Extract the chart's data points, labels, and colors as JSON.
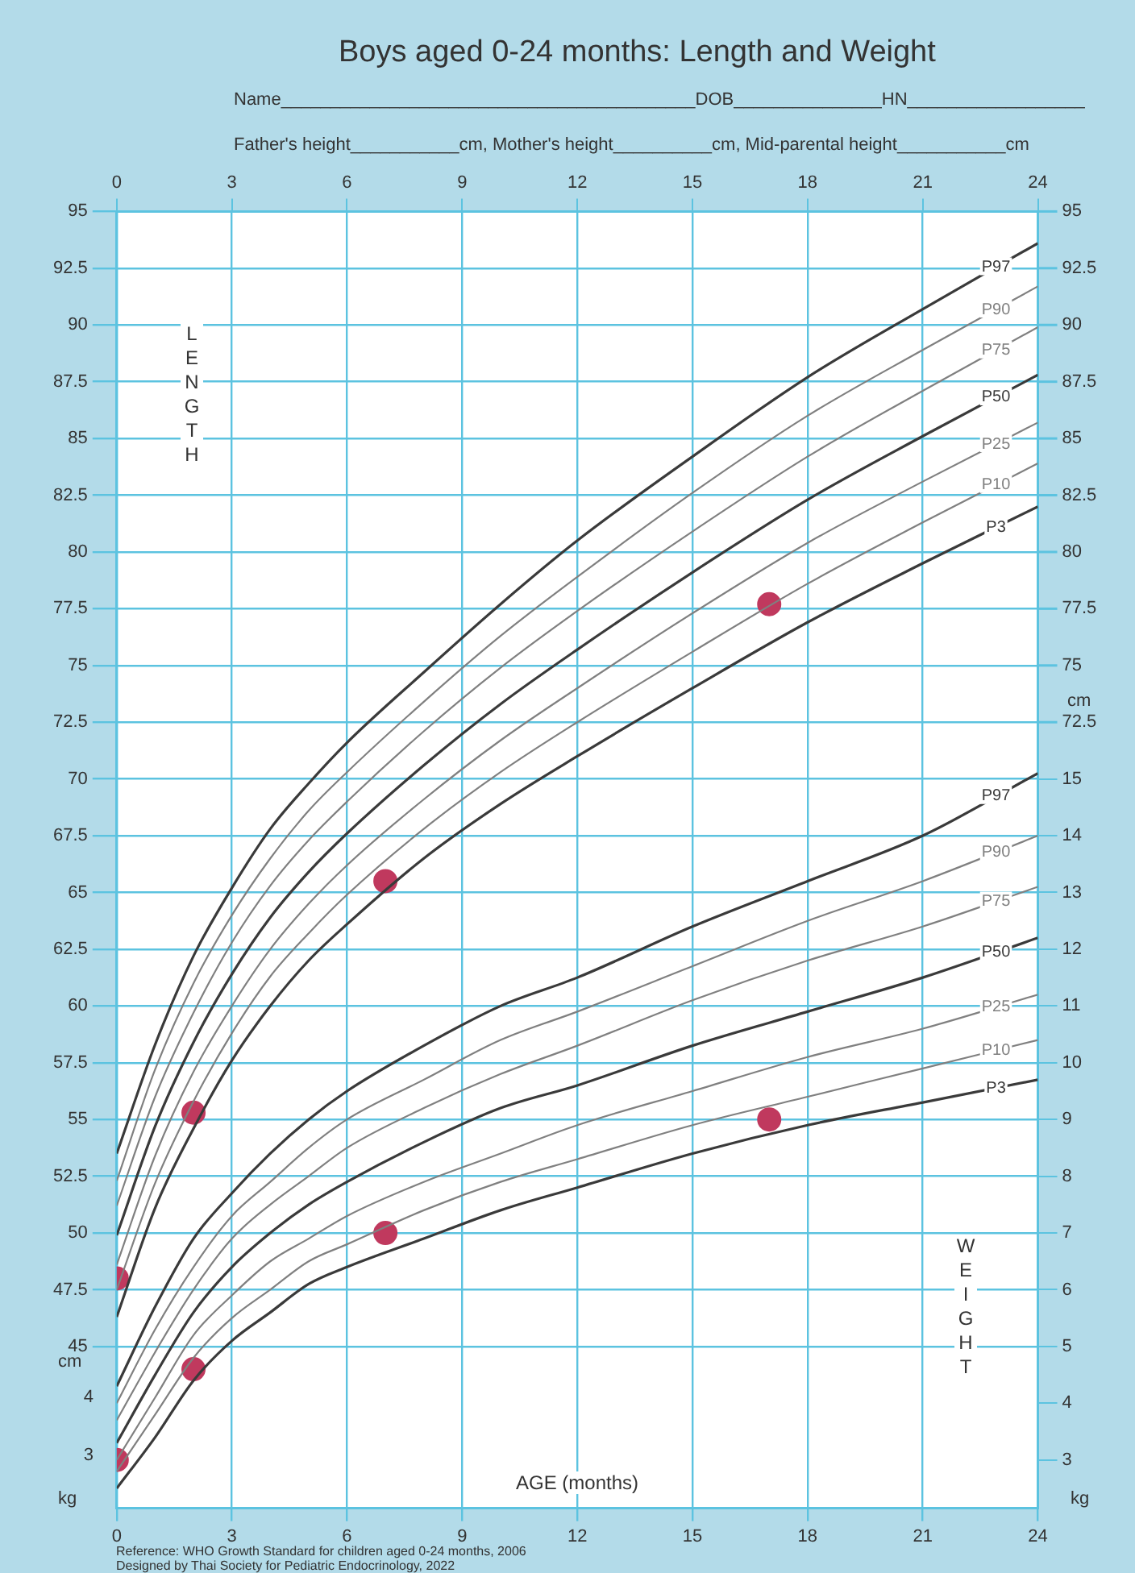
{
  "chart_data": {
    "type": "line",
    "title": "Boys aged 0-24 months: Length and Weight",
    "xlabel": "AGE (months)",
    "annotations": [
      "Name__________________________________________DOB_______________HN__________________",
      "Father's height___________cm, Mother's height__________cm, Mid-parental height___________cm",
      "LENGTH",
      "WEIGHT",
      "cm",
      "kg",
      "cm",
      "kg",
      "4",
      "3",
      "Reference: WHO Growth Standard for children aged 0-24 months, 2006",
      "Designed by Thai Society for Pediatric Endocrinology, 2022"
    ],
    "x": [
      0,
      1,
      2,
      3,
      4,
      5,
      6,
      8,
      10,
      12,
      15,
      18,
      21,
      24
    ],
    "xlim": [
      0,
      24
    ],
    "xticks": [
      0,
      3,
      6,
      9,
      12,
      15,
      18,
      21,
      24
    ],
    "x2lim": [
      0,
      24
    ],
    "x2ticks": [
      0,
      3,
      6,
      9,
      12,
      15,
      18,
      21,
      24
    ],
    "ylim": [
      37.875,
      95
    ],
    "yticks": [
      45,
      47.5,
      50,
      52.5,
      55,
      57.5,
      60,
      62.5,
      65,
      67.5,
      70,
      72.5,
      75,
      77.5,
      80,
      82.5,
      85,
      87.5,
      90,
      92.5,
      95
    ],
    "y2lim": [
      2.15,
      25
    ],
    "y2ticks": [
      3,
      4,
      5,
      6,
      7,
      8,
      9,
      10,
      11,
      12,
      13,
      14,
      15
    ],
    "y3lim": [
      37.875,
      95
    ],
    "y3ticks": [
      72.5,
      75,
      77.5,
      80,
      82.5,
      85,
      87.5,
      90,
      92.5,
      95
    ],
    "grid": true,
    "legend": false,
    "marker": "none",
    "line_style": "solid",
    "series": [
      {
        "name": "P97",
        "color": "#3a3a3a",
        "values": [
          53.5,
          58.3,
          62.2,
          65.2,
          67.8,
          69.8,
          71.6,
          74.7,
          77.7,
          80.5,
          84.2,
          87.7,
          90.7,
          93.6
        ]
      },
      {
        "name": "P90",
        "color": "#808080",
        "values": [
          52.3,
          57.2,
          61.0,
          64.0,
          66.5,
          68.6,
          70.3,
          73.4,
          76.3,
          78.9,
          82.6,
          86.0,
          88.9,
          91.7
        ]
      },
      {
        "name": "P75",
        "color": "#808080",
        "values": [
          51.2,
          56.0,
          59.7,
          62.8,
          65.3,
          67.3,
          69.0,
          72.1,
          74.9,
          77.4,
          80.9,
          84.2,
          87.1,
          89.9
        ]
      },
      {
        "name": "P50",
        "color": "#3a3a3a",
        "values": [
          49.9,
          54.7,
          58.4,
          61.4,
          63.9,
          65.9,
          67.6,
          70.6,
          73.3,
          75.7,
          79.1,
          82.3,
          85.1,
          87.8
        ]
      },
      {
        "name": "P25",
        "color": "#808080",
        "values": [
          48.6,
          53.4,
          57.1,
          60.0,
          62.5,
          64.5,
          66.2,
          69.1,
          71.7,
          74.0,
          77.3,
          80.4,
          83.1,
          85.7
        ]
      },
      {
        "name": "P10",
        "color": "#808080",
        "values": [
          47.5,
          52.2,
          55.8,
          58.8,
          61.3,
          63.2,
          64.9,
          67.8,
          70.3,
          72.5,
          75.6,
          78.6,
          81.3,
          83.9
        ]
      },
      {
        "name": "P3",
        "color": "#3a3a3a",
        "values": [
          46.3,
          51.1,
          54.6,
          57.6,
          60.0,
          62.0,
          63.6,
          66.5,
          68.9,
          71.0,
          74.0,
          76.9,
          79.5,
          82.0
        ]
      },
      {
        "name": "P97",
        "color": "#3a3a3a",
        "axis": "y2",
        "values": [
          4.3,
          5.7,
          6.9,
          7.7,
          8.4,
          9.0,
          9.5,
          10.3,
          11.0,
          11.5,
          12.4,
          13.2,
          14.0,
          15.1
        ]
      },
      {
        "name": "P90",
        "color": "#808080",
        "axis": "y2",
        "values": [
          4.0,
          5.3,
          6.4,
          7.3,
          7.9,
          8.5,
          9.0,
          9.7,
          10.4,
          10.9,
          11.7,
          12.5,
          13.2,
          14.0
        ]
      },
      {
        "name": "P75",
        "color": "#808080",
        "axis": "y2",
        "values": [
          3.7,
          4.9,
          6.0,
          6.9,
          7.5,
          8.0,
          8.5,
          9.2,
          9.8,
          10.3,
          11.1,
          11.8,
          12.4,
          13.1
        ]
      },
      {
        "name": "P50",
        "color": "#3a3a3a",
        "axis": "y2",
        "values": [
          3.3,
          4.5,
          5.6,
          6.4,
          7.0,
          7.5,
          7.9,
          8.6,
          9.2,
          9.6,
          10.3,
          10.9,
          11.5,
          12.2
        ]
      },
      {
        "name": "P25",
        "color": "#808080",
        "axis": "y2",
        "values": [
          3.0,
          4.1,
          5.2,
          5.9,
          6.5,
          6.9,
          7.3,
          7.9,
          8.4,
          8.9,
          9.5,
          10.1,
          10.6,
          11.2
        ]
      },
      {
        "name": "P10",
        "color": "#808080",
        "axis": "y2",
        "values": [
          2.8,
          3.8,
          4.8,
          5.5,
          6.0,
          6.5,
          6.8,
          7.4,
          7.9,
          8.3,
          8.9,
          9.4,
          9.9,
          10.4
        ]
      },
      {
        "name": "P3",
        "color": "#3a3a3a",
        "axis": "y2",
        "values": [
          2.5,
          3.4,
          4.4,
          5.1,
          5.6,
          6.1,
          6.4,
          6.9,
          7.4,
          7.8,
          8.4,
          8.9,
          9.3,
          9.7
        ]
      },
      {
        "type": "scatter",
        "marker": "circle",
        "color": "#c0395e",
        "x": [
          0,
          2,
          7,
          17
        ],
        "values": [
          48,
          55.3,
          65.5,
          77.7
        ]
      },
      {
        "type": "scatter",
        "marker": "circle",
        "color": "#c0395e",
        "axis": "y2",
        "x": [
          0,
          2,
          7,
          17
        ],
        "values": [
          3.0,
          4.6,
          7.0,
          9.0
        ]
      }
    ]
  }
}
